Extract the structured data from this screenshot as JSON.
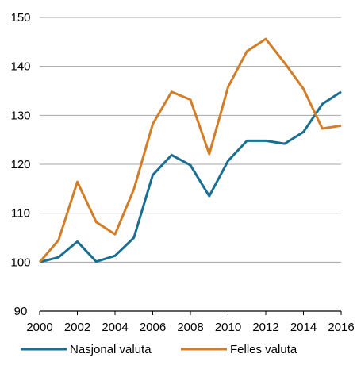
{
  "chart_data": {
    "type": "line",
    "x": [
      2000,
      2001,
      2002,
      2003,
      2004,
      2005,
      2006,
      2007,
      2008,
      2009,
      2010,
      2011,
      2012,
      2013,
      2014,
      2015,
      2016
    ],
    "series": [
      {
        "name": "Nasjonal valuta",
        "color": "#1a6e92",
        "values": [
          100,
          101,
          104.2,
          100.1,
          101.3,
          105,
          117.8,
          121.9,
          119.8,
          113.5,
          120.7,
          124.8,
          124.8,
          124.2,
          126.6,
          132.3,
          134.8
        ]
      },
      {
        "name": "Felles valuta",
        "color": "#d27d27",
        "values": [
          100,
          104.5,
          116.4,
          108.2,
          105.7,
          114.9,
          128.2,
          134.8,
          133.2,
          122.1,
          135.8,
          143.1,
          145.6,
          140.7,
          135.4,
          127.3,
          127.9
        ]
      }
    ],
    "ylim": [
      90,
      150
    ],
    "yticks": [
      90,
      100,
      110,
      120,
      130,
      140,
      150
    ],
    "xlim": [
      2000,
      2016
    ],
    "xticks": [
      2000,
      2002,
      2004,
      2006,
      2008,
      2010,
      2012,
      2014,
      2016
    ],
    "grid": true,
    "legend_position": "bottom"
  }
}
